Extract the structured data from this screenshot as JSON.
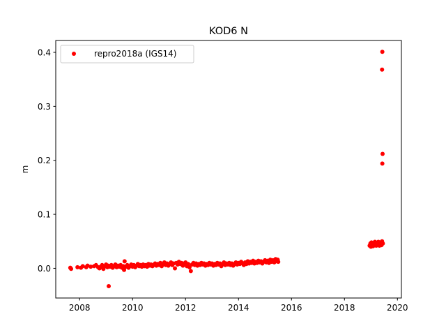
{
  "chart_data": {
    "type": "scatter",
    "title": "KOD6 N",
    "xlabel": "",
    "ylabel": "m",
    "xlim": [
      2007.1,
      2020.15
    ],
    "ylim": [
      -0.055,
      0.422
    ],
    "grid": false,
    "legend_position": "top-left",
    "x_ticks": [
      2008,
      2010,
      2012,
      2014,
      2016,
      2018,
      2020
    ],
    "x_tick_labels": [
      "2008",
      "2010",
      "2012",
      "2014",
      "2016",
      "2018",
      "2020"
    ],
    "y_ticks": [
      0.0,
      0.1,
      0.2,
      0.3,
      0.4
    ],
    "y_tick_labels": [
      "0.0",
      "0.1",
      "0.2",
      "0.3",
      "0.4"
    ],
    "series": [
      {
        "name": "repro2018a (IGS14)",
        "color": "#ff0000",
        "marker": "circle",
        "points": [
          [
            2007.65,
            0.001
          ],
          [
            2007.68,
            -0.001
          ],
          [
            2007.92,
            0.002
          ],
          [
            2008.05,
            0.001
          ],
          [
            2008.12,
            0.004
          ],
          [
            2008.25,
            0.002
          ],
          [
            2008.3,
            0.005
          ],
          [
            2008.42,
            0.003
          ],
          [
            2008.55,
            0.004
          ],
          [
            2008.62,
            0.006
          ],
          [
            2008.7,
            0.002
          ],
          [
            2008.75,
            0.0
          ],
          [
            2008.8,
            0.003
          ],
          [
            2008.85,
            0.006
          ],
          [
            2008.9,
            -0.001
          ],
          [
            2008.95,
            0.004
          ],
          [
            2009.0,
            0.007
          ],
          [
            2009.05,
            0.002
          ],
          [
            2009.08,
            0.005
          ],
          [
            2009.1,
            -0.033
          ],
          [
            2009.15,
            0.003
          ],
          [
            2009.2,
            0.006
          ],
          [
            2009.25,
            0.001
          ],
          [
            2009.3,
            0.004
          ],
          [
            2009.35,
            0.007
          ],
          [
            2009.4,
            0.002
          ],
          [
            2009.45,
            0.005
          ],
          [
            2009.5,
            0.003
          ],
          [
            2009.55,
            0.006
          ],
          [
            2009.6,
            0.001
          ],
          [
            2009.65,
            0.004
          ],
          [
            2009.68,
            -0.003
          ],
          [
            2009.7,
            0.013
          ],
          [
            2009.75,
            0.003
          ],
          [
            2009.8,
            0.006
          ],
          [
            2009.85,
            0.001
          ],
          [
            2009.9,
            0.004
          ],
          [
            2009.95,
            0.007
          ],
          [
            2010.0,
            0.003
          ],
          [
            2010.05,
            0.006
          ],
          [
            2010.1,
            0.002
          ],
          [
            2010.15,
            0.005
          ],
          [
            2010.2,
            0.008
          ],
          [
            2010.25,
            0.004
          ],
          [
            2010.3,
            0.006
          ],
          [
            2010.35,
            0.003
          ],
          [
            2010.4,
            0.007
          ],
          [
            2010.45,
            0.004
          ],
          [
            2010.5,
            0.006
          ],
          [
            2010.55,
            0.003
          ],
          [
            2010.6,
            0.008
          ],
          [
            2010.65,
            0.005
          ],
          [
            2010.7,
            0.007
          ],
          [
            2010.75,
            0.004
          ],
          [
            2010.8,
            0.006
          ],
          [
            2010.85,
            0.009
          ],
          [
            2010.9,
            0.005
          ],
          [
            2010.95,
            0.008
          ],
          [
            2011.0,
            0.006
          ],
          [
            2011.05,
            0.01
          ],
          [
            2011.1,
            0.004
          ],
          [
            2011.15,
            0.008
          ],
          [
            2011.2,
            0.011
          ],
          [
            2011.25,
            0.006
          ],
          [
            2011.3,
            0.009
          ],
          [
            2011.35,
            0.005
          ],
          [
            2011.4,
            0.008
          ],
          [
            2011.45,
            0.011
          ],
          [
            2011.5,
            0.006
          ],
          [
            2011.55,
            0.009
          ],
          [
            2011.6,
            0.0
          ],
          [
            2011.65,
            0.01
          ],
          [
            2011.7,
            0.007
          ],
          [
            2011.75,
            0.012
          ],
          [
            2011.8,
            0.008
          ],
          [
            2011.85,
            0.01
          ],
          [
            2011.9,
            0.005
          ],
          [
            2011.95,
            0.009
          ],
          [
            2012.0,
            0.011
          ],
          [
            2012.05,
            0.004
          ],
          [
            2012.1,
            0.008
          ],
          [
            2012.15,
            0.002
          ],
          [
            2012.2,
            -0.005
          ],
          [
            2012.25,
            0.007
          ],
          [
            2012.3,
            0.01
          ],
          [
            2012.35,
            0.006
          ],
          [
            2012.4,
            0.009
          ],
          [
            2012.45,
            0.005
          ],
          [
            2012.5,
            0.008
          ],
          [
            2012.55,
            0.006
          ],
          [
            2012.6,
            0.01
          ],
          [
            2012.65,
            0.007
          ],
          [
            2012.7,
            0.009
          ],
          [
            2012.75,
            0.005
          ],
          [
            2012.8,
            0.008
          ],
          [
            2012.85,
            0.006
          ],
          [
            2012.9,
            0.01
          ],
          [
            2012.95,
            0.007
          ],
          [
            2013.0,
            0.009
          ],
          [
            2013.05,
            0.005
          ],
          [
            2013.1,
            0.008
          ],
          [
            2013.15,
            0.006
          ],
          [
            2013.2,
            0.01
          ],
          [
            2013.25,
            0.007
          ],
          [
            2013.3,
            0.009
          ],
          [
            2013.35,
            0.004
          ],
          [
            2013.4,
            0.008
          ],
          [
            2013.45,
            0.011
          ],
          [
            2013.5,
            0.006
          ],
          [
            2013.55,
            0.009
          ],
          [
            2013.6,
            0.007
          ],
          [
            2013.65,
            0.01
          ],
          [
            2013.7,
            0.006
          ],
          [
            2013.75,
            0.009
          ],
          [
            2013.8,
            0.005
          ],
          [
            2013.85,
            0.008
          ],
          [
            2013.9,
            0.011
          ],
          [
            2013.95,
            0.007
          ],
          [
            2014.0,
            0.01
          ],
          [
            2014.05,
            0.008
          ],
          [
            2014.1,
            0.012
          ],
          [
            2014.15,
            0.009
          ],
          [
            2014.2,
            0.006
          ],
          [
            2014.25,
            0.011
          ],
          [
            2014.3,
            0.008
          ],
          [
            2014.35,
            0.013
          ],
          [
            2014.4,
            0.009
          ],
          [
            2014.45,
            0.012
          ],
          [
            2014.5,
            0.01
          ],
          [
            2014.55,
            0.014
          ],
          [
            2014.6,
            0.009
          ],
          [
            2014.65,
            0.012
          ],
          [
            2014.7,
            0.01
          ],
          [
            2014.75,
            0.014
          ],
          [
            2014.8,
            0.011
          ],
          [
            2014.85,
            0.013
          ],
          [
            2014.9,
            0.009
          ],
          [
            2014.95,
            0.012
          ],
          [
            2015.0,
            0.015
          ],
          [
            2015.05,
            0.011
          ],
          [
            2015.1,
            0.014
          ],
          [
            2015.15,
            0.01
          ],
          [
            2015.2,
            0.016
          ],
          [
            2015.25,
            0.012
          ],
          [
            2015.3,
            0.015
          ],
          [
            2015.35,
            0.011
          ],
          [
            2015.4,
            0.017
          ],
          [
            2015.45,
            0.013
          ],
          [
            2015.48,
            0.016
          ],
          [
            2015.5,
            0.012
          ],
          [
            2018.95,
            0.042
          ],
          [
            2018.98,
            0.046
          ],
          [
            2019.0,
            0.04
          ],
          [
            2019.02,
            0.048
          ],
          [
            2019.05,
            0.044
          ],
          [
            2019.08,
            0.041
          ],
          [
            2019.1,
            0.047
          ],
          [
            2019.12,
            0.043
          ],
          [
            2019.15,
            0.049
          ],
          [
            2019.18,
            0.045
          ],
          [
            2019.2,
            0.042
          ],
          [
            2019.22,
            0.047
          ],
          [
            2019.25,
            0.044
          ],
          [
            2019.28,
            0.049
          ],
          [
            2019.3,
            0.045
          ],
          [
            2019.32,
            0.042
          ],
          [
            2019.35,
            0.048
          ],
          [
            2019.38,
            0.046
          ],
          [
            2019.4,
            0.043
          ],
          [
            2019.42,
            0.05
          ],
          [
            2019.45,
            0.046
          ],
          [
            2019.43,
            0.401
          ],
          [
            2019.42,
            0.368
          ],
          [
            2019.44,
            0.212
          ],
          [
            2019.43,
            0.194
          ]
        ]
      }
    ]
  }
}
